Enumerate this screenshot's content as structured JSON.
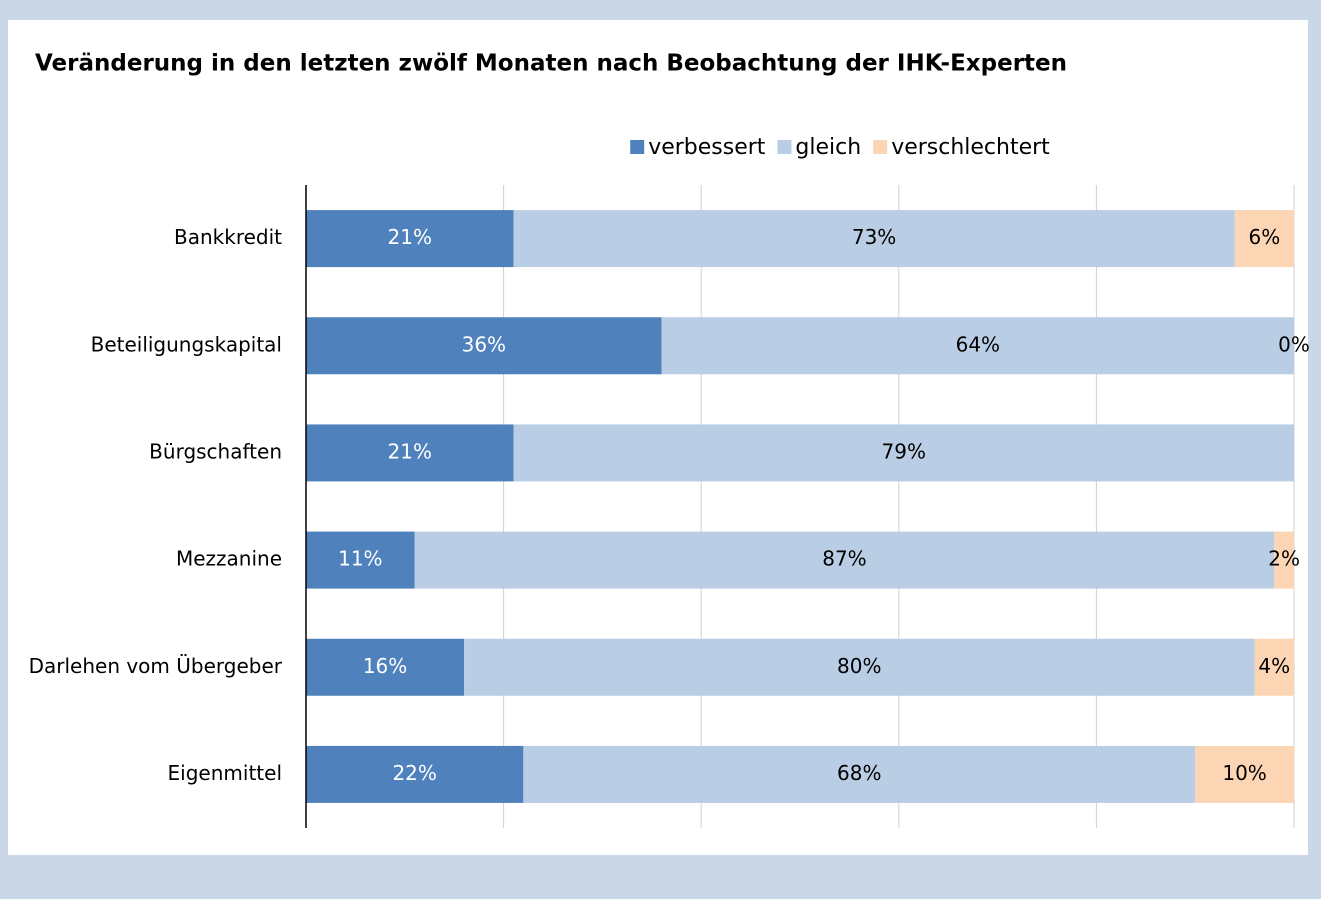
{
  "chart_data": {
    "type": "stacked-bar-horizontal",
    "title": "Veränderung in den letzten zwölf Monaten nach Beobachtung der IHK-Experten",
    "categories": [
      "Bankkredit",
      "Beteiligungskapital",
      "Bürgschaften",
      "Mezzanine",
      "Darlehen vom Übergeber",
      "Eigenmittel"
    ],
    "series": [
      {
        "name": "verbessert",
        "color": "#4f81bd",
        "label_color": "#ffffff",
        "values": [
          21,
          36,
          21,
          11,
          16,
          22
        ],
        "value_labels": [
          "21%",
          "36%",
          "21%",
          "11%",
          "16%",
          "22%"
        ]
      },
      {
        "name": "gleich",
        "color": "#b9cde5",
        "label_color": "#000000",
        "values": [
          73,
          64,
          79,
          87,
          80,
          68
        ],
        "value_labels": [
          "73%",
          "64%",
          "79%",
          "87%",
          "80%",
          "68%"
        ]
      },
      {
        "name": "verschlechtert",
        "color": "#fcd5b5",
        "label_color": "#000000",
        "values": [
          6,
          0,
          null,
          2,
          4,
          10
        ],
        "value_labels": [
          "6%",
          "0%",
          null,
          "2%",
          "4%",
          "10%"
        ]
      }
    ],
    "xlim": [
      0,
      100
    ],
    "xticks": [
      0,
      20,
      40,
      60,
      80,
      100
    ],
    "grid": true,
    "legend": "top"
  }
}
